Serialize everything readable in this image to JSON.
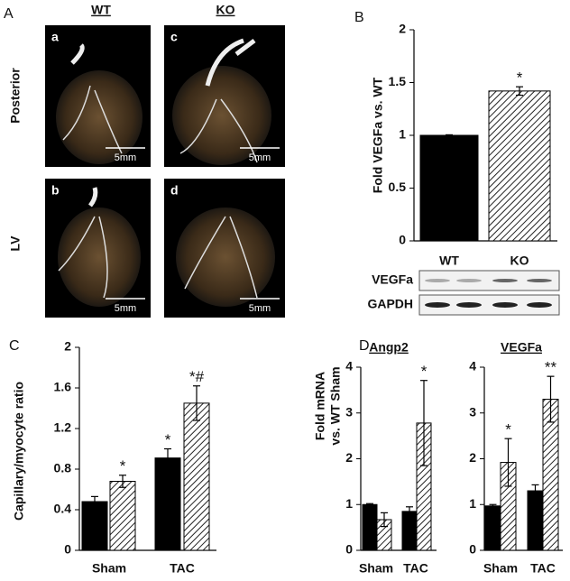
{
  "panel_a": {
    "letter": "A",
    "col_labels": [
      "WT",
      "KO"
    ],
    "row_labels": [
      "Posterior",
      "LV"
    ],
    "images": [
      "a",
      "c",
      "b",
      "d"
    ],
    "scale_label": "5mm"
  },
  "blot": {
    "rows": [
      "VEGFa",
      "GAPDH"
    ]
  },
  "chart_data": [
    {
      "type": "bar",
      "panel": "B",
      "ylabel": "Fold  VEGFa  vs. WT",
      "categories": [
        "WT",
        "KO"
      ],
      "values": [
        1.0,
        1.42
      ],
      "errors": [
        0.005,
        0.04
      ],
      "annotations": [
        null,
        "*"
      ],
      "bar_hatch": [
        false,
        true
      ],
      "color": "#000000",
      "ylim": [
        0,
        2
      ],
      "yticks": [
        0,
        0.5,
        1,
        1.5,
        2
      ]
    },
    {
      "type": "grouped_bar",
      "panel": "C",
      "ylabel": "Capillary/myocyte ratio",
      "categories": [
        "Sham",
        "TAC"
      ],
      "series": [
        {
          "color": "#000000",
          "hatch": false,
          "values": [
            0.48,
            0.91
          ],
          "errors": [
            0.05,
            0.09
          ],
          "annotations": [
            null,
            "*"
          ]
        },
        {
          "color": "#333333",
          "hatch": true,
          "values": [
            0.68,
            1.45
          ],
          "errors": [
            0.06,
            0.17
          ],
          "annotations": [
            "*",
            "*#"
          ]
        }
      ],
      "ylim": [
        0,
        2
      ],
      "yticks": [
        0,
        0.4,
        0.8,
        1.2,
        1.6,
        2
      ]
    },
    {
      "type": "grouped_bar",
      "panel": "D",
      "title": "Angp2",
      "ylabel": [
        "Fold  mRNA",
        "vs. WT Sham"
      ],
      "categories": [
        "Sham",
        "TAC"
      ],
      "series": [
        {
          "color": "#000000",
          "hatch": false,
          "values": [
            1.0,
            0.85
          ],
          "errors": [
            0.02,
            0.1
          ],
          "annotations": [
            null,
            null
          ]
        },
        {
          "color": "#333333",
          "hatch": true,
          "values": [
            0.67,
            2.78
          ],
          "errors": [
            0.15,
            0.93
          ],
          "annotations": [
            null,
            "*"
          ]
        }
      ],
      "ylim": [
        0,
        4
      ],
      "yticks": [
        0,
        1,
        2,
        3,
        4
      ]
    },
    {
      "type": "grouped_bar",
      "title": "VEGFa",
      "categories": [
        "Sham",
        "TAC"
      ],
      "series": [
        {
          "color": "#000000",
          "hatch": false,
          "values": [
            0.97,
            1.3
          ],
          "errors": [
            0.03,
            0.13
          ],
          "annotations": [
            null,
            null
          ]
        },
        {
          "color": "#333333",
          "hatch": true,
          "values": [
            1.92,
            3.3
          ],
          "errors": [
            0.52,
            0.5
          ],
          "annotations": [
            "*",
            "**"
          ]
        }
      ],
      "ylim": [
        0,
        4
      ],
      "yticks": [
        0,
        1,
        2,
        3,
        4
      ]
    }
  ]
}
